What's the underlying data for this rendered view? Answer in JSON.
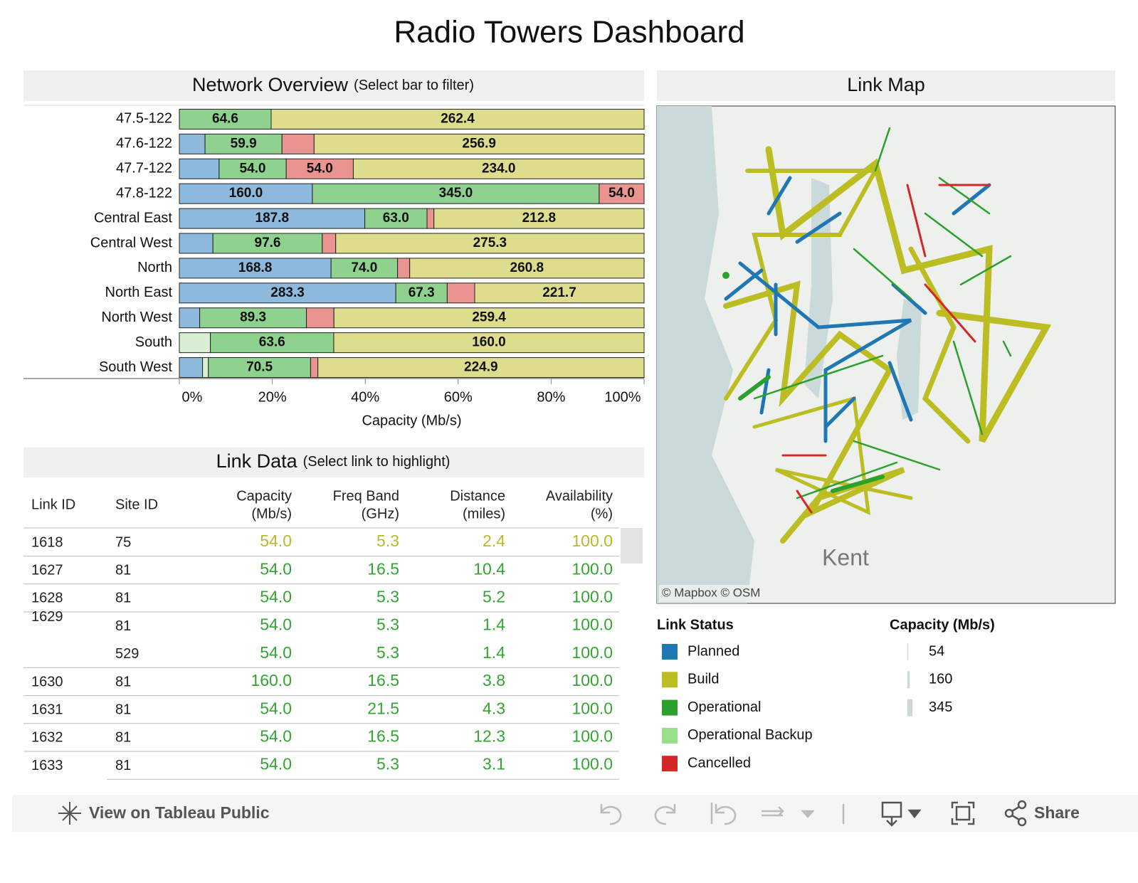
{
  "header": {
    "title": "Radio Towers Dashboard"
  },
  "chart_data": {
    "type": "bar",
    "orientation": "horizontal",
    "stacking": "percent",
    "title": "Network Overview",
    "subtitle": "(Select bar to filter)",
    "x_label": "Capacity (Mb/s)",
    "categories": [
      "47.5-122",
      "47.6-122",
      "47.7-122",
      "47.8-122",
      "Central East",
      "Central West",
      "North",
      "North East",
      "North West",
      "South",
      "South West"
    ],
    "series": [
      {
        "name": "Planned",
        "color": "#8cb9dc",
        "values": [
          null,
          20,
          32,
          160,
          187.8,
          30,
          168.8,
          283.3,
          17,
          null,
          16
        ],
        "value_labels": [
          null,
          null,
          null,
          "160.0",
          "187.8",
          null,
          "168.8",
          "283.3",
          null,
          null,
          null
        ]
      },
      {
        "name": "Operational Backup",
        "color": "#d9eed3",
        "values": [
          null,
          null,
          null,
          null,
          null,
          null,
          null,
          null,
          null,
          16,
          4
        ],
        "value_labels": [
          null,
          null,
          null,
          null,
          null,
          null,
          null,
          null,
          null,
          null,
          null
        ]
      },
      {
        "name": "Operational",
        "color": "#8fd18e",
        "values": [
          64.6,
          59.9,
          54,
          345,
          63,
          97.6,
          74,
          67.3,
          89.3,
          63.6,
          70.5
        ],
        "value_labels": [
          "64.6",
          "59.9",
          "54.0",
          "345.0",
          "63.0",
          "97.6",
          "74.0",
          "67.3",
          "89.3",
          "63.6",
          "70.5"
        ]
      },
      {
        "name": "Cancelled",
        "color": "#ea9491",
        "values": [
          null,
          25,
          54,
          54,
          7,
          12,
          13.5,
          36,
          23,
          null,
          5
        ],
        "value_labels": [
          null,
          null,
          "54.0",
          "54.0",
          null,
          null,
          null,
          null,
          null,
          null,
          null
        ]
      },
      {
        "name": "Build",
        "color": "#dedd8e",
        "values": [
          262.4,
          256.9,
          234,
          null,
          212.8,
          275.3,
          260.8,
          221.7,
          259.4,
          160,
          224.9
        ],
        "value_labels": [
          "262.4",
          "256.9",
          "234.0",
          null,
          "212.8",
          "275.3",
          "260.8",
          "221.7",
          "259.4",
          "160.0",
          "224.9"
        ]
      }
    ],
    "xlim": [
      0,
      100
    ],
    "xticks": [
      {
        "value": 0,
        "label": "0%"
      },
      {
        "value": 20,
        "label": "20%"
      },
      {
        "value": 40,
        "label": "40%"
      },
      {
        "value": 60,
        "label": "60%"
      },
      {
        "value": 80,
        "label": "80%"
      },
      {
        "value": 100,
        "label": "100%"
      }
    ]
  },
  "link_data": {
    "title": "Link Data",
    "subtitle": "(Select link to highlight)",
    "columns": [
      [
        "Link ID"
      ],
      [
        "Site ID"
      ],
      [
        "Capacity",
        "(Mb/s)"
      ],
      [
        "Freq Band",
        "(GHz)"
      ],
      [
        "Distance",
        "(miles)"
      ],
      [
        "Availability",
        "(%)"
      ]
    ],
    "rows": [
      {
        "color": "#b8b92b",
        "cells": [
          "1618",
          "75",
          "54.0",
          "5.3",
          "2.4",
          "100.0"
        ]
      },
      {
        "color": "#33a532",
        "cells": [
          "1627",
          "81",
          "54.0",
          "16.5",
          "10.4",
          "100.0"
        ]
      },
      {
        "color": "#33a532",
        "cells": [
          "1628",
          "81",
          "54.0",
          "5.3",
          "5.2",
          "100.0"
        ]
      },
      {
        "color": "#33a532",
        "cells": [
          "1629",
          "81",
          "54.0",
          "5.3",
          "1.4",
          "100.0"
        ]
      },
      {
        "color": "#33a532",
        "cells": [
          null,
          "529",
          "54.0",
          "5.3",
          "1.4",
          "100.0"
        ]
      },
      {
        "color": "#33a532",
        "cells": [
          "1630",
          "81",
          "160.0",
          "16.5",
          "3.8",
          "100.0"
        ]
      },
      {
        "color": "#33a532",
        "cells": [
          "1631",
          "81",
          "54.0",
          "21.5",
          "4.3",
          "100.0"
        ]
      },
      {
        "color": "#33a532",
        "cells": [
          "1632",
          "81",
          "54.0",
          "16.5",
          "12.3",
          "100.0"
        ]
      },
      {
        "color": "#33a532",
        "cells": [
          "1633",
          "81",
          "54.0",
          "5.3",
          "3.1",
          "100.0"
        ]
      }
    ]
  },
  "link_map": {
    "title": "Link Map",
    "place": "Kent",
    "attribution": "© Mapbox © OSM"
  },
  "legend": {
    "status_title": "Link Status",
    "status": [
      {
        "label": "Planned",
        "color": "#1f77b4"
      },
      {
        "label": "Build",
        "color": "#bcbd22"
      },
      {
        "label": "Operational",
        "color": "#2ca02c"
      },
      {
        "label": "Operational Backup",
        "color": "#98df8a"
      },
      {
        "label": "Cancelled",
        "color": "#d62728"
      }
    ],
    "capacity_title": "Capacity (Mb/s)",
    "capacity": [
      54,
      160,
      345
    ]
  },
  "toolbar": {
    "view": "View on Tableau Public",
    "share": "Share"
  }
}
